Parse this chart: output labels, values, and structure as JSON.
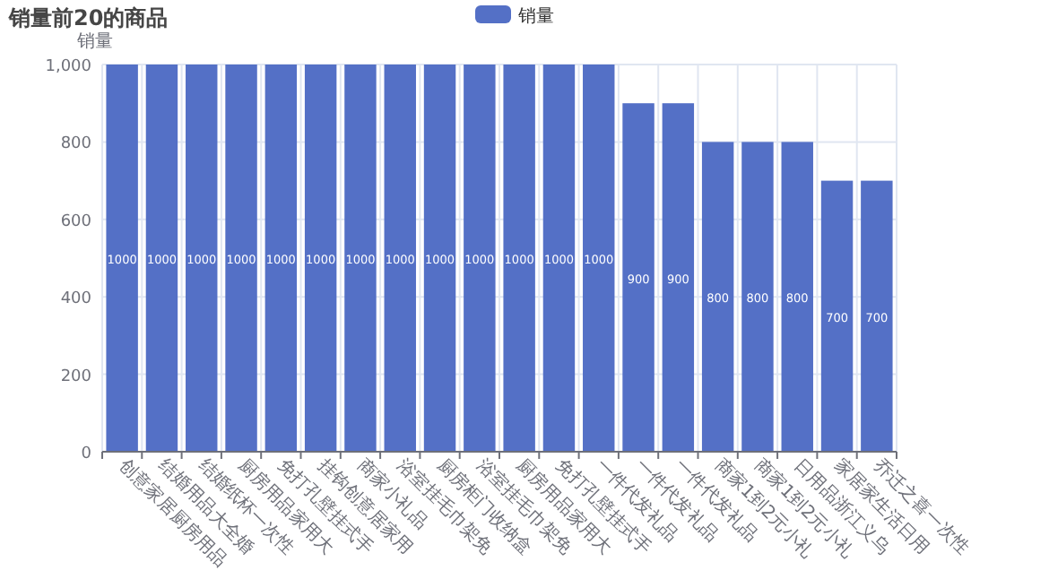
{
  "chart_data": {
    "type": "bar",
    "title": "销量前20的商品",
    "ylabel": "销量",
    "categories": [
      "创意家居厨房用品",
      "结婚用品大全婚",
      "结婚纸杯一次性",
      "厨房用品家用大",
      "免打孔壁挂式手",
      "挂钩创意居家用",
      "商家小礼品",
      "浴室挂毛巾架免",
      "厨房柜门收纳盒",
      "浴室挂毛巾架免",
      "厨房用品家用大",
      "免打孔壁挂式手",
      "一件代发礼品",
      "一件代发礼品",
      "一件代发礼品",
      "商家1到2元小礼",
      "商家1到2元小礼",
      "日用品浙江义乌",
      "家居家生活日用",
      "乔迁之喜一次性"
    ],
    "series": [
      {
        "name": "销量",
        "color": "#5470c6",
        "values": [
          1000,
          1000,
          1000,
          1000,
          1000,
          1000,
          1000,
          1000,
          1000,
          1000,
          1000,
          1000,
          1000,
          900,
          900,
          800,
          800,
          800,
          700,
          700
        ]
      }
    ],
    "ylim": [
      0,
      1000
    ],
    "yticks": [
      0,
      200,
      400,
      600,
      800,
      {
        "value": 1000,
        "label": "1,000"
      }
    ],
    "grid": true,
    "legend": "top",
    "data_labels": true
  }
}
